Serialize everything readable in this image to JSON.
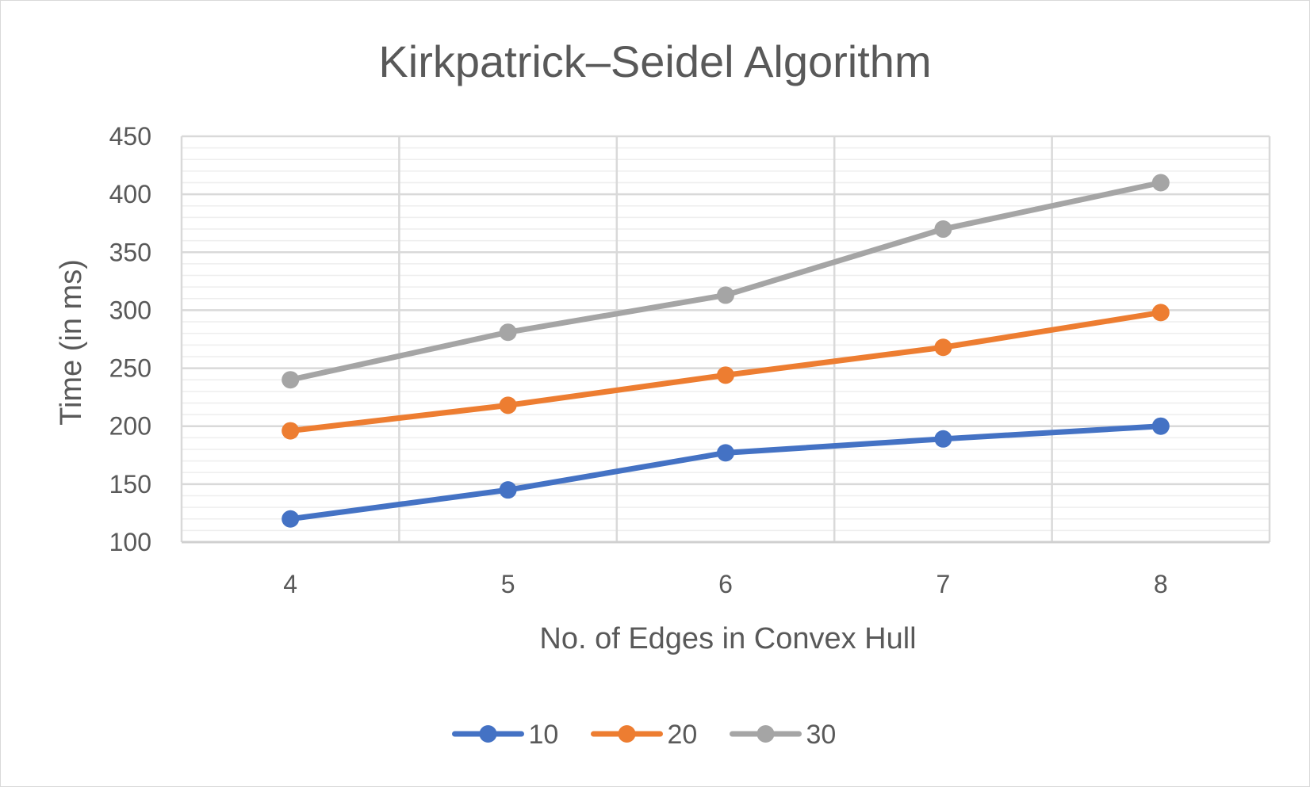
{
  "chart_data": {
    "type": "line",
    "title": "Kirkpatrick–Seidel Algorithm",
    "xlabel": "No. of Edges in Convex Hull",
    "ylabel": "Time (in ms)",
    "categories": [
      "4",
      "5",
      "6",
      "7",
      "8"
    ],
    "ylim": [
      100,
      450
    ],
    "yticks": [
      100,
      150,
      200,
      250,
      300,
      350,
      400,
      450
    ],
    "grid": true,
    "legend_position": "bottom",
    "series": [
      {
        "name": "10",
        "color": "#4472c4",
        "values": [
          120,
          145,
          177,
          189,
          200
        ]
      },
      {
        "name": "20",
        "color": "#ed7d31",
        "values": [
          196,
          218,
          244,
          268,
          298
        ]
      },
      {
        "name": "30",
        "color": "#a5a5a5",
        "values": [
          240,
          281,
          313,
          370,
          410
        ]
      }
    ]
  }
}
